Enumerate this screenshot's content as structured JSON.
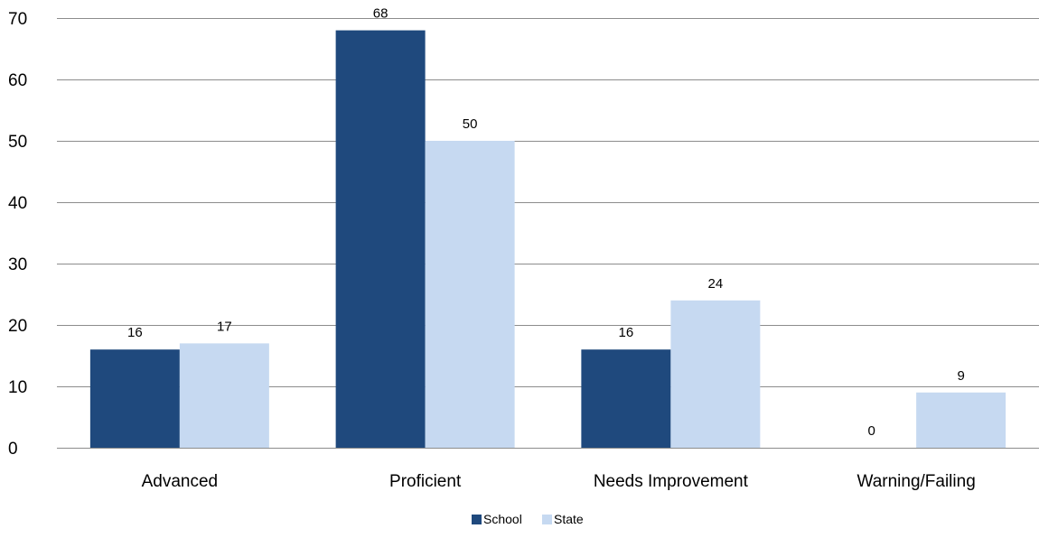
{
  "chart_data": {
    "type": "bar",
    "categories": [
      "Advanced",
      "Proficient",
      "Needs Improvement",
      "Warning/Failing"
    ],
    "series": [
      {
        "name": "School",
        "values": [
          16,
          68,
          16,
          0
        ],
        "color": "#1f497d"
      },
      {
        "name": "State",
        "values": [
          17,
          50,
          24,
          9
        ],
        "color": "#c6d9f1"
      }
    ],
    "ylim": [
      0,
      70
    ],
    "yticks": [
      0,
      10,
      20,
      30,
      40,
      50,
      60,
      70
    ],
    "grid": true,
    "legend_position": "bottom"
  }
}
